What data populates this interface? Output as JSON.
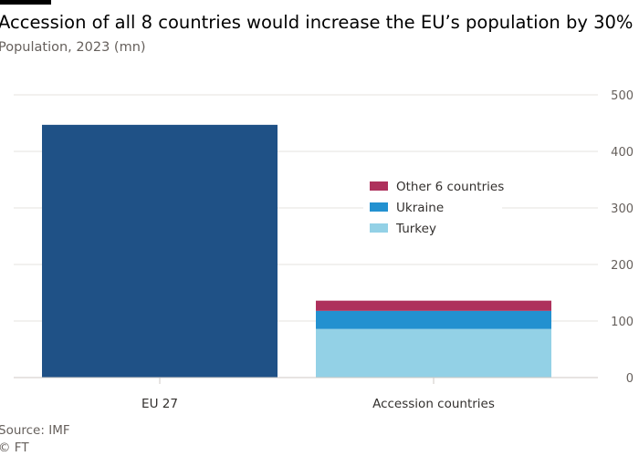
{
  "title": "Accession of all 8 countries would increase the EU’s population by 30%",
  "subtitle": "Population, 2023 (mn)",
  "source": "Source: IMF",
  "credit": "© FT",
  "colors": {
    "eu27": "#1f5186",
    "turkey": "#93d1e6",
    "ukraine": "#2391d0",
    "other": "#ae315c",
    "grid": "#e6e3df",
    "baseline": "#cfc9c4"
  },
  "chart_data": {
    "type": "bar",
    "stacked": true,
    "title": "Accession of all 8 countries would increase the EU’s population by 30%",
    "subtitle": "Population, 2023 (mn)",
    "categories": [
      "EU 27",
      "Accession countries"
    ],
    "series": [
      {
        "name": "",
        "key": "eu27",
        "values": [
          447,
          0
        ]
      },
      {
        "name": "Turkey",
        "key": "turkey",
        "values": [
          0,
          86
        ]
      },
      {
        "name": "Ukraine",
        "key": "ukraine",
        "values": [
          0,
          32
        ]
      },
      {
        "name": "Other 6 countries",
        "key": "other",
        "values": [
          0,
          18
        ]
      }
    ],
    "legend": [
      "Other 6 countries",
      "Ukraine",
      "Turkey"
    ],
    "legend_keys": [
      "other",
      "ukraine",
      "turkey"
    ],
    "legend_position": "right, inside plot",
    "ylim": [
      0,
      500
    ],
    "yticks": [
      0,
      100,
      200,
      300,
      400,
      500
    ],
    "y_axis_side": "right",
    "grid": true
  }
}
